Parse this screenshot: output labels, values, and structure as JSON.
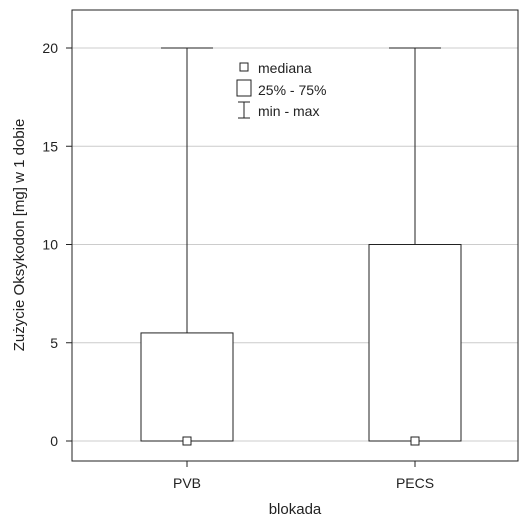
{
  "chart_data": {
    "type": "boxplot",
    "xlabel": "blokada",
    "ylabel": "Zużycie Oksykodon [mg] w 1 dobie",
    "ylim": [
      -1,
      22
    ],
    "yticks": [
      0,
      5,
      10,
      15,
      20
    ],
    "grid": true,
    "legend_position": "top-center",
    "categories": [
      "PVB",
      "PECS"
    ],
    "boxes": [
      {
        "category": "PVB",
        "median": 0,
        "q1": 0,
        "q3": 5.5,
        "min": 0,
        "max": 20
      },
      {
        "category": "PECS",
        "median": 0,
        "q1": 0,
        "q3": 10,
        "min": 0,
        "max": 20
      }
    ],
    "legend": {
      "median_label": "mediana",
      "box_label": "25% - 75%",
      "whisker_label": "min - max"
    },
    "colors": {
      "stroke": "#222222",
      "grid": "#cccccc",
      "box_fill": "#ffffff"
    }
  }
}
